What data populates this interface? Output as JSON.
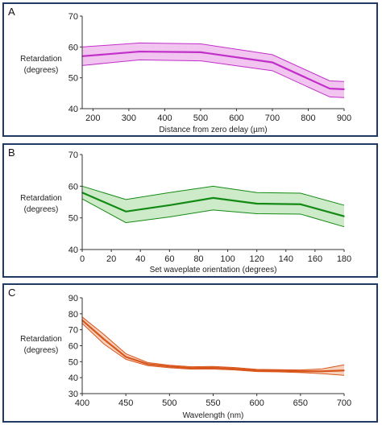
{
  "panels": [
    {
      "label": "A",
      "chart_data": {
        "type": "area",
        "xlabel": "Distance from zero delay (µm)",
        "ylabel": [
          "Retardation",
          "(degrees)"
        ],
        "xlim": [
          170,
          900
        ],
        "ylim": [
          40,
          70
        ],
        "xticks": [
          200,
          300,
          400,
          500,
          600,
          700,
          800,
          900
        ],
        "yticks": [
          40,
          50,
          60,
          70
        ],
        "color": "#c12fc9",
        "fill": "#f2c4f0",
        "x": [
          170,
          330,
          500,
          700,
          860,
          900
        ],
        "y": [
          57,
          58.5,
          58.3,
          55,
          46.5,
          46.3
        ],
        "upper": [
          60,
          61.3,
          61,
          57.5,
          49,
          48.8
        ],
        "lower": [
          54,
          55.8,
          55.5,
          52.3,
          43.8,
          43.6
        ]
      }
    },
    {
      "label": "B",
      "chart_data": {
        "type": "area",
        "xlabel": "Set waveplate orientation (degrees)",
        "ylabel": [
          "Retardation",
          "(degrees)"
        ],
        "xlim": [
          0,
          180
        ],
        "ylim": [
          40,
          70
        ],
        "xticks": [
          0,
          20,
          40,
          60,
          80,
          100,
          120,
          140,
          160,
          180
        ],
        "yticks": [
          40,
          50,
          60,
          70
        ],
        "color": "#138a14",
        "fill": "#cdebc8",
        "x": [
          0,
          30,
          60,
          90,
          120,
          150,
          180
        ],
        "y": [
          58,
          52,
          54,
          56.3,
          54.5,
          54.3,
          50.5
        ],
        "upper": [
          60,
          55.8,
          58,
          60,
          58,
          57.8,
          54
        ],
        "lower": [
          56,
          48.5,
          50.3,
          52.5,
          51.3,
          51.2,
          47.2
        ]
      }
    },
    {
      "label": "C",
      "chart_data": {
        "type": "area",
        "xlabel": "Wavelength (nm)",
        "ylabel": [
          "Retardation",
          "(degrees)"
        ],
        "xlim": [
          400,
          700
        ],
        "ylim": [
          30,
          90
        ],
        "xticks": [
          400,
          450,
          500,
          550,
          600,
          650,
          700
        ],
        "yticks": [
          30,
          40,
          50,
          60,
          70,
          80,
          90
        ],
        "color": "#d8561c",
        "fill": "#f6d2bd",
        "x": [
          400,
          425,
          450,
          475,
          500,
          525,
          550,
          575,
          600,
          625,
          650,
          675,
          700
        ],
        "y": [
          76,
          64,
          53,
          48.5,
          47,
          46,
          46.2,
          45.5,
          44.5,
          44.3,
          44,
          44,
          44.5
        ],
        "upper": [
          78,
          67,
          55,
          49.5,
          47.8,
          46.8,
          47,
          46.3,
          45.2,
          45,
          44.8,
          45.5,
          48
        ],
        "lower": [
          74,
          61,
          51.5,
          47.5,
          46.2,
          45.3,
          45.4,
          44.8,
          43.8,
          43.6,
          43.2,
          42.5,
          41.5
        ]
      }
    }
  ]
}
